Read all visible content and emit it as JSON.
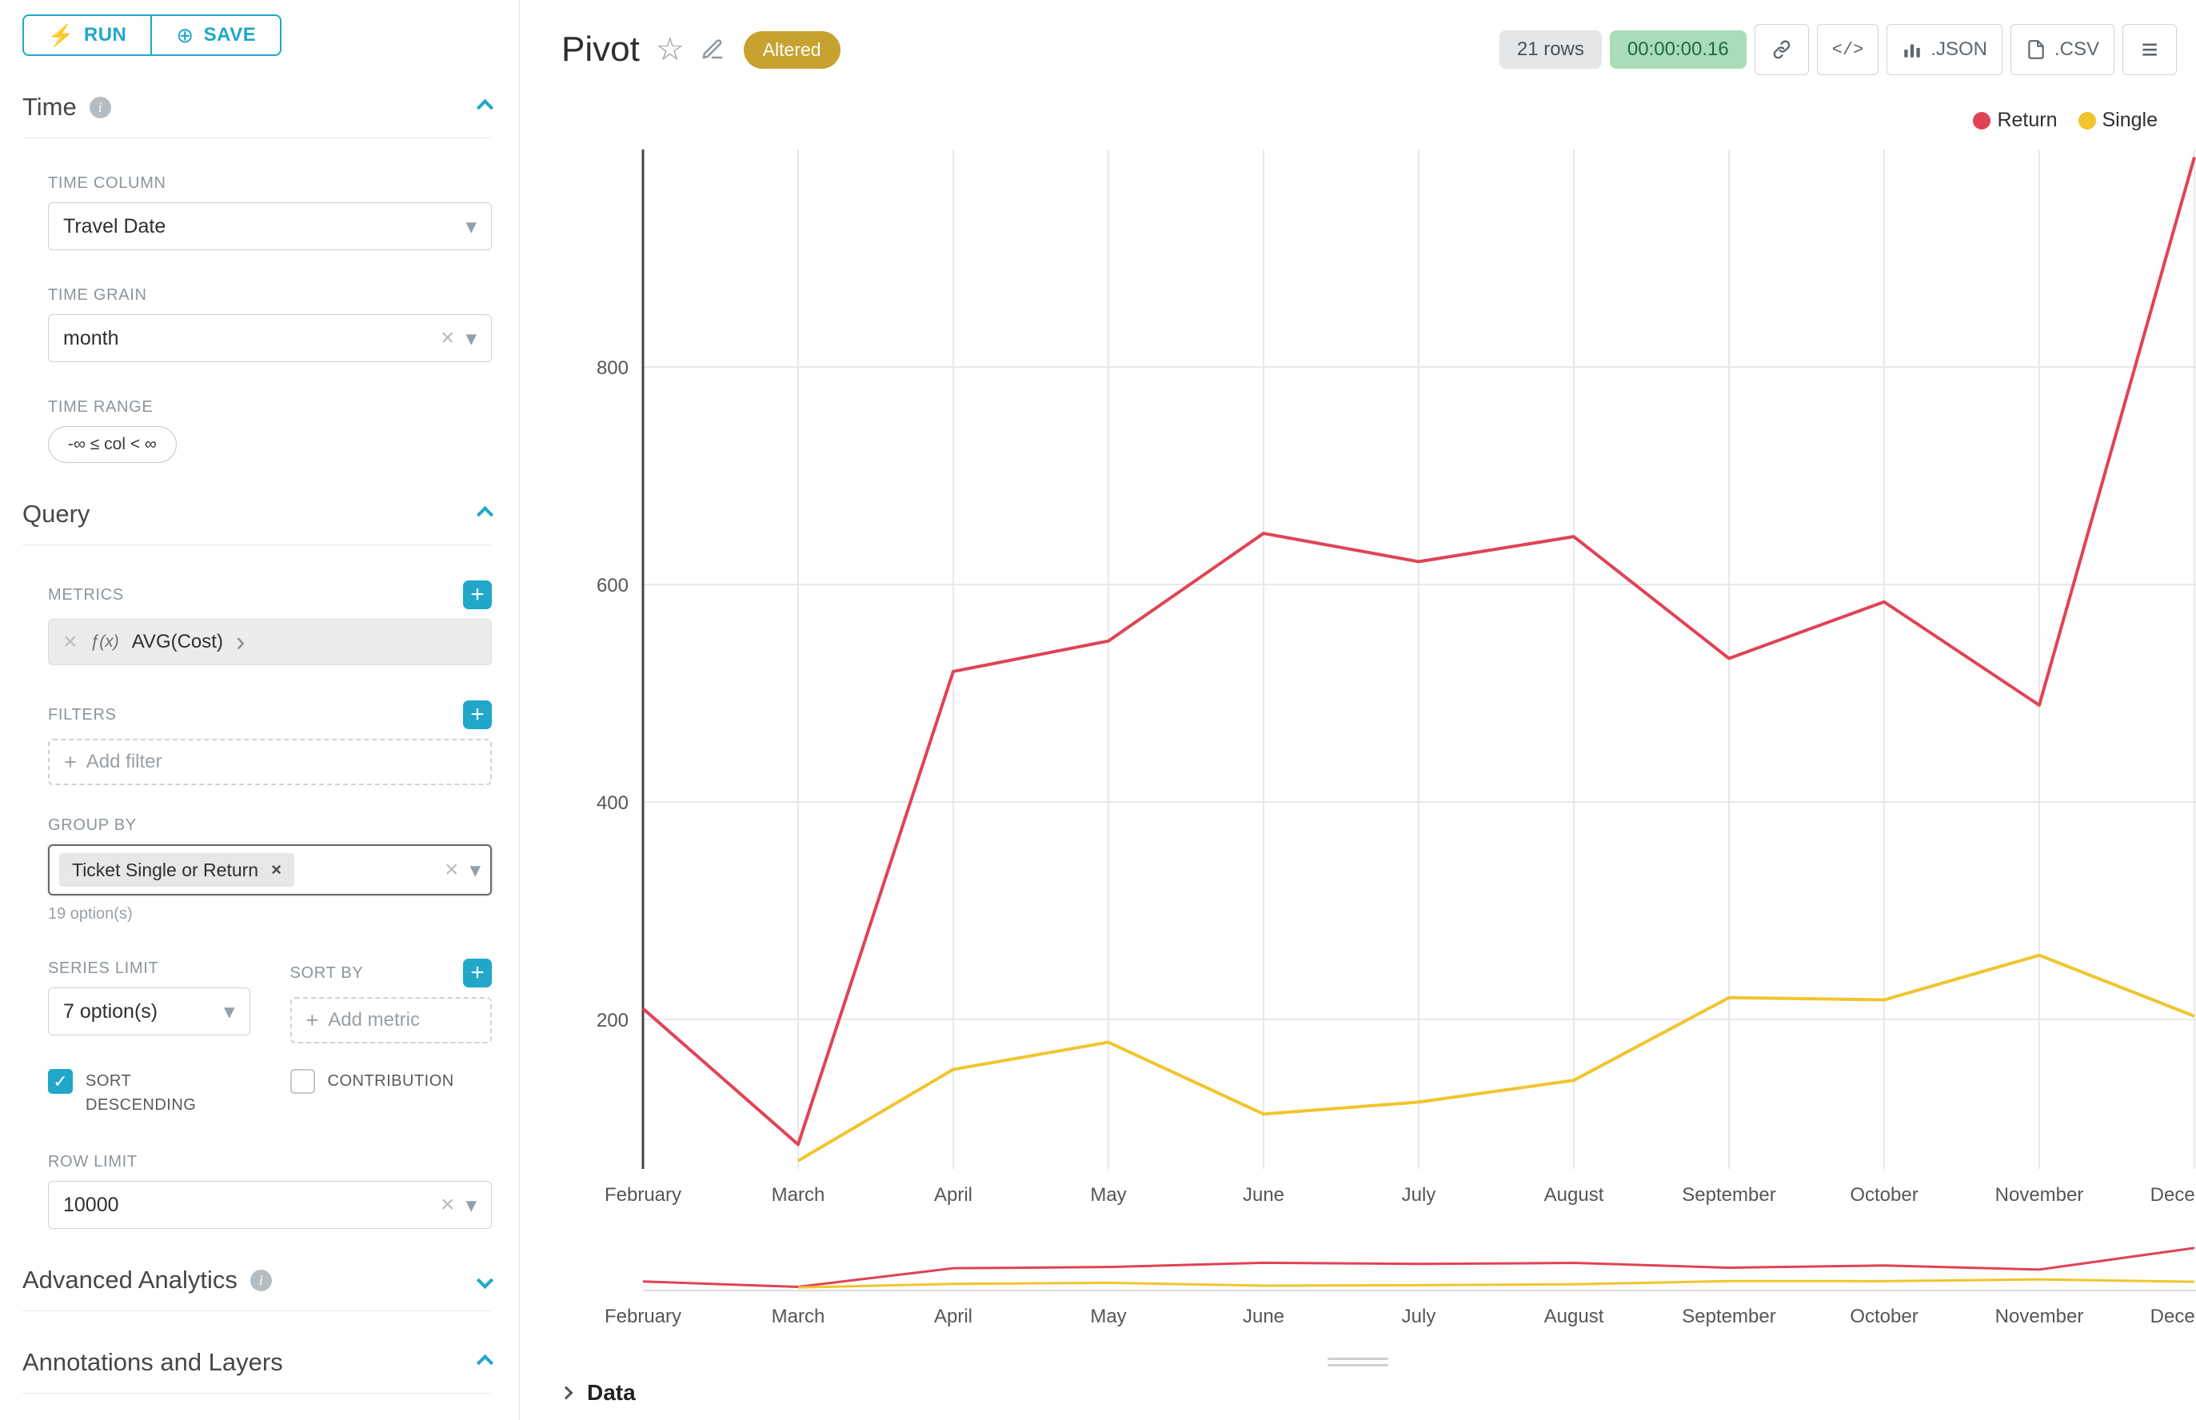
{
  "colors": {
    "accent": "#20a7c9",
    "return_series": "#e04355",
    "single_series": "#f0c52e",
    "altered_badge_bg": "#c7a22f",
    "rows_badge_bg": "#e4e6e8",
    "timer_badge_bg": "#a9dcb8",
    "timer_badge_text": "#1f6a41"
  },
  "icons": {
    "run": "⚡",
    "save": "⊕",
    "caret": "▾",
    "clear": "×",
    "check": "✓",
    "plus": "+",
    "info": "i",
    "star": "☆",
    "code": "</>",
    "menu": "≡",
    "chip_arrow": "›"
  },
  "toolbar": {
    "run": "RUN",
    "save": "SAVE"
  },
  "sidebar": {
    "time": {
      "title": "Time",
      "time_column_label": "TIME COLUMN",
      "time_column_value": "Travel Date",
      "time_grain_label": "TIME GRAIN",
      "time_grain_value": "month",
      "time_range_label": "TIME RANGE",
      "time_range_value": "-∞ ≤ col < ∞"
    },
    "query": {
      "title": "Query",
      "metrics_label": "METRICS",
      "metric_fx": "ƒ(x)",
      "metric_name": "AVG(Cost)",
      "filters_label": "FILTERS",
      "add_filter": "Add filter",
      "group_by_label": "GROUP BY",
      "group_by_value": "Ticket Single or Return",
      "group_by_hint": "19 option(s)",
      "series_limit_label": "SERIES LIMIT",
      "series_limit_value": "7 option(s)",
      "sort_by_label": "SORT BY",
      "add_metric": "Add metric",
      "sort_descending": "SORT DESCENDING",
      "contribution": "CONTRIBUTION",
      "row_limit_label": "ROW LIMIT",
      "row_limit_value": "10000"
    },
    "advanced_analytics_title": "Advanced Analytics",
    "annotations_title": "Annotations and Layers"
  },
  "header": {
    "title": "Pivot",
    "altered": "Altered",
    "rows": "21 rows",
    "timer": "00:00:00.16",
    "json": ".JSON",
    "csv": ".CSV"
  },
  "chart_data": {
    "type": "line",
    "title": "Pivot",
    "xlabel": "",
    "ylabel": "",
    "x": [
      "February",
      "March",
      "April",
      "May",
      "June",
      "July",
      "August",
      "September",
      "October",
      "November",
      "December"
    ],
    "series": [
      {
        "name": "Return",
        "color": "#e04355",
        "values": [
          210,
          85,
          520,
          548,
          647,
          621,
          644,
          532,
          584,
          489,
          993
        ]
      },
      {
        "name": "Single",
        "color": "#f0c52e",
        "values": [
          null,
          70,
          154,
          179,
          113,
          124,
          144,
          220,
          218,
          259,
          203
        ]
      }
    ],
    "ylim": [
      0,
      1000
    ],
    "yticks": [
      200,
      400,
      600,
      800
    ],
    "grid": true,
    "legend_position": "top-right",
    "has_range_selector_minimap": true
  },
  "footer": {
    "data": "Data"
  }
}
